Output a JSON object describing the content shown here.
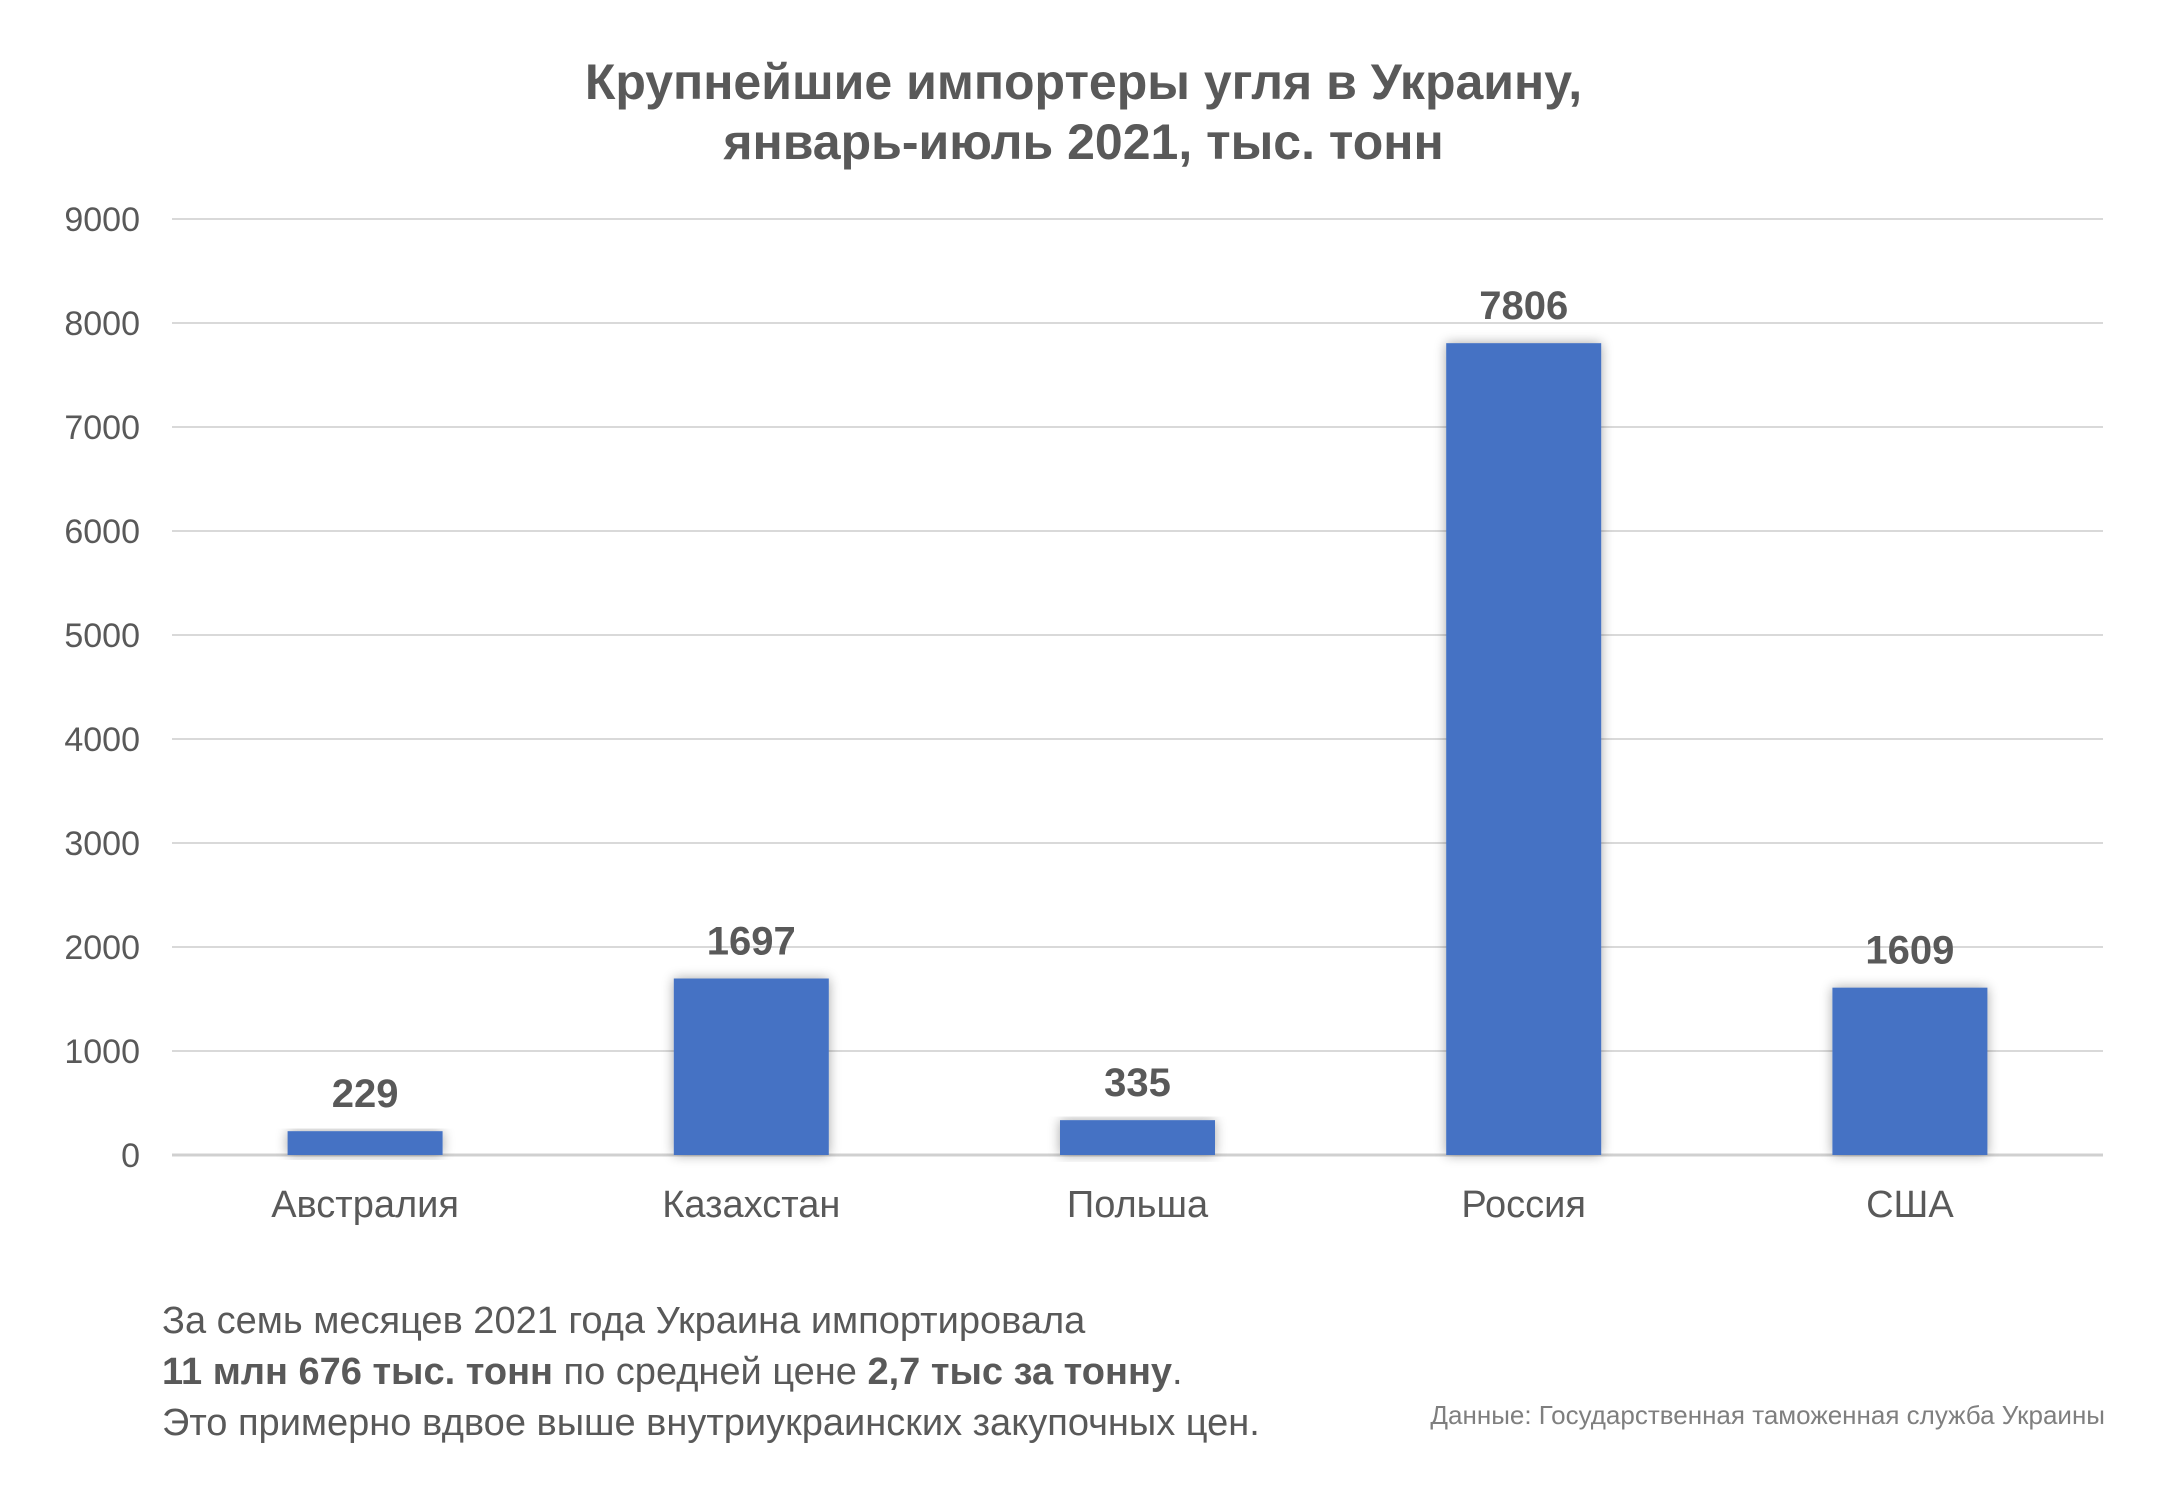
{
  "title": {
    "line1": "Крупнейшие импортеры угля в Украину,",
    "line2": "январь-июль 2021, тыс. тонн"
  },
  "chart_data": {
    "type": "bar",
    "categories": [
      "Австралия",
      "Казахстан",
      "Польша",
      "Россия",
      "США"
    ],
    "values": [
      229,
      1697,
      335,
      7806,
      1609
    ],
    "title": "Крупнейшие импортеры угля в Украину, январь-июль 2021, тыс. тонн",
    "xlabel": "",
    "ylabel": "",
    "ylim": [
      0,
      9000
    ],
    "yticks": [
      "0",
      "1000",
      "2000",
      "3000",
      "4000",
      "5000",
      "6000",
      "7000",
      "8000",
      "9000"
    ],
    "grid": true,
    "legend": "none",
    "bar_color": "#4472C4",
    "data_labels": true
  },
  "note": {
    "line1": "За семь месяцев 2021 года Украина импортировала",
    "line2_bold1": "11 млн 676 тыс. тонн",
    "line2_mid": " по средней цене ",
    "line2_bold2": "2,7 тыс за тонну",
    "line2_end": ".",
    "line3": "Это примерно вдвое выше внутриукраинских закупочных цен."
  },
  "source": "Данные: Государственная таможенная служба Украины"
}
